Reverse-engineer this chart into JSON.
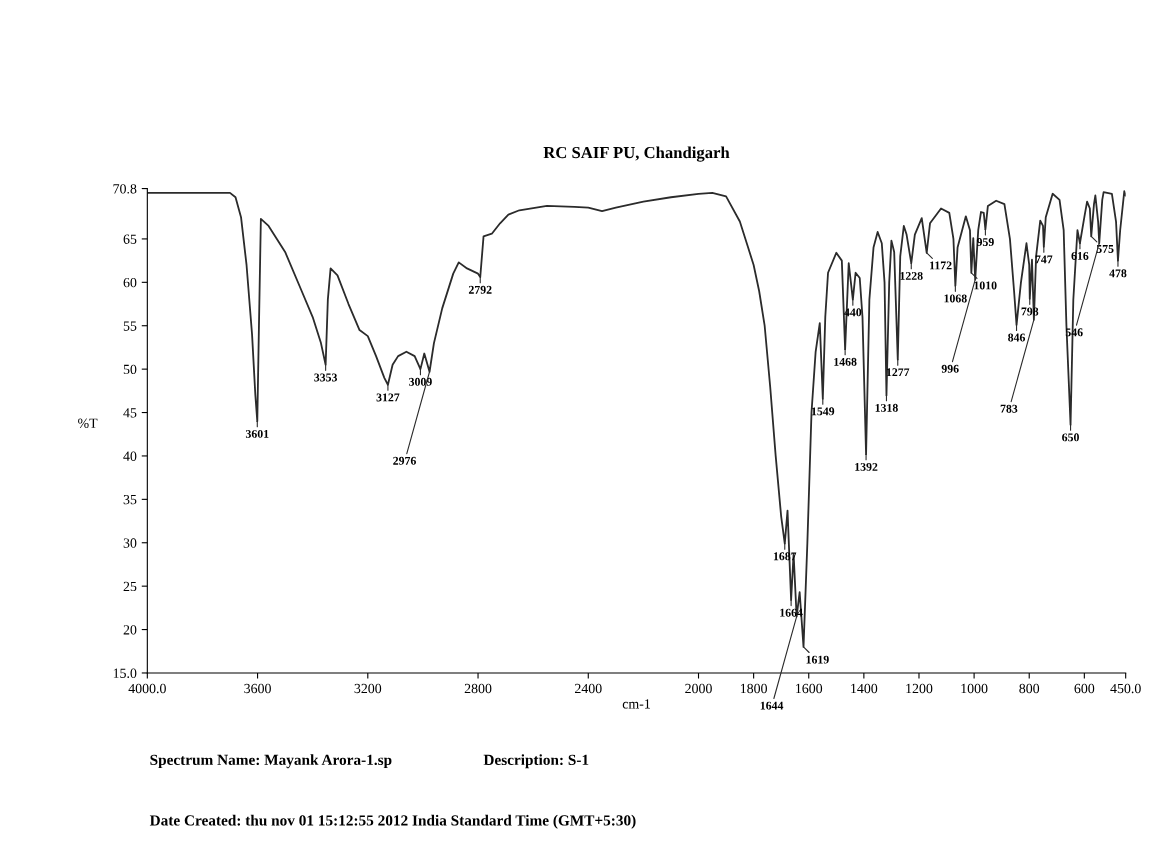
{
  "chart_data": {
    "type": "line",
    "title": "RC SAIF PU, Chandigarh",
    "xlabel": "cm-1",
    "ylabel": "%T",
    "xlim": [
      4000,
      450
    ],
    "ylim": [
      15,
      70.8
    ],
    "xticks": [
      {
        "value": 4000,
        "label": "4000.0"
      },
      3600,
      3200,
      2800,
      2400,
      2000,
      1800,
      1600,
      1400,
      1200,
      1000,
      800,
      600,
      {
        "value": 450,
        "label": "450.0"
      }
    ],
    "yticks": [
      {
        "value": 15,
        "label": "15.0"
      },
      20,
      25,
      30,
      35,
      40,
      45,
      50,
      55,
      60,
      65,
      {
        "value": 70.8,
        "label": "70.8"
      }
    ],
    "grid": false,
    "legend": false,
    "series": [
      {
        "color": "#2b2b2b",
        "x": [
          4000,
          3700,
          3680,
          3660,
          3640,
          3620,
          3608,
          3601,
          3595,
          3588,
          3560,
          3500,
          3440,
          3400,
          3370,
          3353,
          3345,
          3335,
          3310,
          3270,
          3230,
          3200,
          3170,
          3140,
          3127,
          3110,
          3090,
          3060,
          3030,
          3009,
          2995,
          2976,
          2960,
          2930,
          2890,
          2870,
          2840,
          2800,
          2792,
          2780,
          2750,
          2720,
          2690,
          2650,
          2550,
          2450,
          2400,
          2350,
          2300,
          2200,
          2100,
          2000,
          1950,
          1900,
          1850,
          1820,
          1800,
          1780,
          1760,
          1740,
          1720,
          1700,
          1687,
          1677,
          1664,
          1655,
          1644,
          1633,
          1619,
          1605,
          1590,
          1575,
          1560,
          1549,
          1540,
          1530,
          1500,
          1480,
          1468,
          1455,
          1440,
          1430,
          1415,
          1405,
          1392,
          1380,
          1365,
          1350,
          1335,
          1325,
          1318,
          1308,
          1300,
          1290,
          1277,
          1268,
          1255,
          1245,
          1228,
          1215,
          1190,
          1172,
          1160,
          1120,
          1090,
          1075,
          1068,
          1060,
          1030,
          1015,
          1010,
          1003,
          996,
          985,
          975,
          965,
          959,
          950,
          920,
          890,
          870,
          855,
          846,
          830,
          810,
          800,
          798,
          790,
          783,
          775,
          760,
          750,
          747,
          740,
          715,
          690,
          675,
          665,
          650,
          640,
          625,
          616,
          600,
          590,
          580,
          575,
          565,
          560,
          550,
          546,
          535,
          530,
          500,
          485,
          478,
          470,
          455,
          450
        ],
        "values": [
          70.3,
          70.3,
          69.8,
          67.5,
          62,
          54,
          47,
          44.0,
          55,
          67.3,
          66.5,
          63.5,
          59,
          56,
          53,
          50.5,
          58,
          61.6,
          60.8,
          57.5,
          54.5,
          53.8,
          51.5,
          49,
          48.2,
          50.5,
          51.5,
          52,
          51.5,
          50.0,
          51.8,
          49.7,
          53,
          57,
          61,
          62.3,
          61.6,
          61.0,
          60.6,
          65.3,
          65.6,
          66.8,
          67.8,
          68.3,
          68.8,
          68.7,
          68.6,
          68.2,
          68.6,
          69.3,
          69.8,
          70.2,
          70.3,
          69.9,
          67,
          64,
          62,
          59,
          55,
          48,
          40,
          33,
          29.9,
          33.7,
          23.4,
          28.7,
          21.5,
          24.3,
          18.0,
          30,
          45,
          52,
          55.3,
          46.6,
          56,
          61.1,
          63.4,
          62.5,
          52.3,
          62.2,
          58.0,
          61.1,
          60.5,
          56,
          40.2,
          58,
          64,
          65.8,
          64.5,
          60,
          47.0,
          60,
          64.8,
          63.5,
          51.1,
          63,
          66.5,
          65.5,
          62.2,
          65.5,
          67.4,
          63.4,
          66.8,
          68.5,
          68,
          65,
          59.6,
          64,
          67.6,
          66,
          61.1,
          65.1,
          60.3,
          66,
          68.1,
          68,
          66.1,
          68.8,
          69.4,
          69,
          65,
          59,
          55.1,
          60,
          64.5,
          62,
          58.1,
          62.6,
          55.7,
          63,
          67.1,
          66.5,
          64.1,
          67.5,
          70.2,
          69.5,
          66,
          55,
          43.6,
          58,
          66,
          64.5,
          67.5,
          69.3,
          68.5,
          65.3,
          69,
          70.0,
          67,
          64.5,
          69.5,
          70.4,
          70.2,
          67,
          62.5,
          66,
          70.5,
          70.0
        ]
      }
    ],
    "annotations": [
      {
        "text": "3601",
        "x": 3601,
        "y": 44.0
      },
      {
        "text": "3353",
        "x": 3353,
        "y": 50.5
      },
      {
        "text": "3127",
        "x": 3127,
        "y": 48.2
      },
      {
        "text": "3009",
        "x": 3009,
        "y": 50.0
      },
      {
        "text": "2976",
        "x": 2976,
        "y": 49.7
      },
      {
        "text": "2792",
        "x": 2792,
        "y": 60.6
      },
      {
        "text": "1687",
        "x": 1687,
        "y": 29.9
      },
      {
        "text": "1664",
        "x": 1664,
        "y": 23.4
      },
      {
        "text": "1644",
        "x": 1644,
        "y": 21.5
      },
      {
        "text": "1619",
        "x": 1619,
        "y": 18.0
      },
      {
        "text": "1549",
        "x": 1549,
        "y": 46.6
      },
      {
        "text": "1468",
        "x": 1468,
        "y": 52.3
      },
      {
        "text": "440",
        "x": 1440,
        "y": 58.0
      },
      {
        "text": "1392",
        "x": 1392,
        "y": 40.2
      },
      {
        "text": "1318",
        "x": 1318,
        "y": 47.0
      },
      {
        "text": "1277",
        "x": 1277,
        "y": 51.1
      },
      {
        "text": "1228",
        "x": 1228,
        "y": 62.2
      },
      {
        "text": "1172",
        "x": 1172,
        "y": 63.4
      },
      {
        "text": "1068",
        "x": 1068,
        "y": 59.6
      },
      {
        "text": "1010",
        "x": 1010,
        "y": 61.1
      },
      {
        "text": "996",
        "x": 996,
        "y": 60.3
      },
      {
        "text": "959",
        "x": 959,
        "y": 66.1
      },
      {
        "text": "846",
        "x": 846,
        "y": 55.1
      },
      {
        "text": "798",
        "x": 798,
        "y": 58.1
      },
      {
        "text": "783",
        "x": 783,
        "y": 55.7
      },
      {
        "text": "747",
        "x": 747,
        "y": 64.1
      },
      {
        "text": "650",
        "x": 650,
        "y": 43.6
      },
      {
        "text": "616",
        "x": 616,
        "y": 64.5
      },
      {
        "text": "575",
        "x": 575,
        "y": 65.3
      },
      {
        "text": "546",
        "x": 546,
        "y": 64.5
      },
      {
        "text": "478",
        "x": 478,
        "y": 62.5
      },
      "Spectrum Name: Mayank Arora-1.sp",
      "Description: S-1",
      "Date Created: thu nov 01 15:12:55 2012 India Standard Time (GMT+5:30)"
    ]
  }
}
